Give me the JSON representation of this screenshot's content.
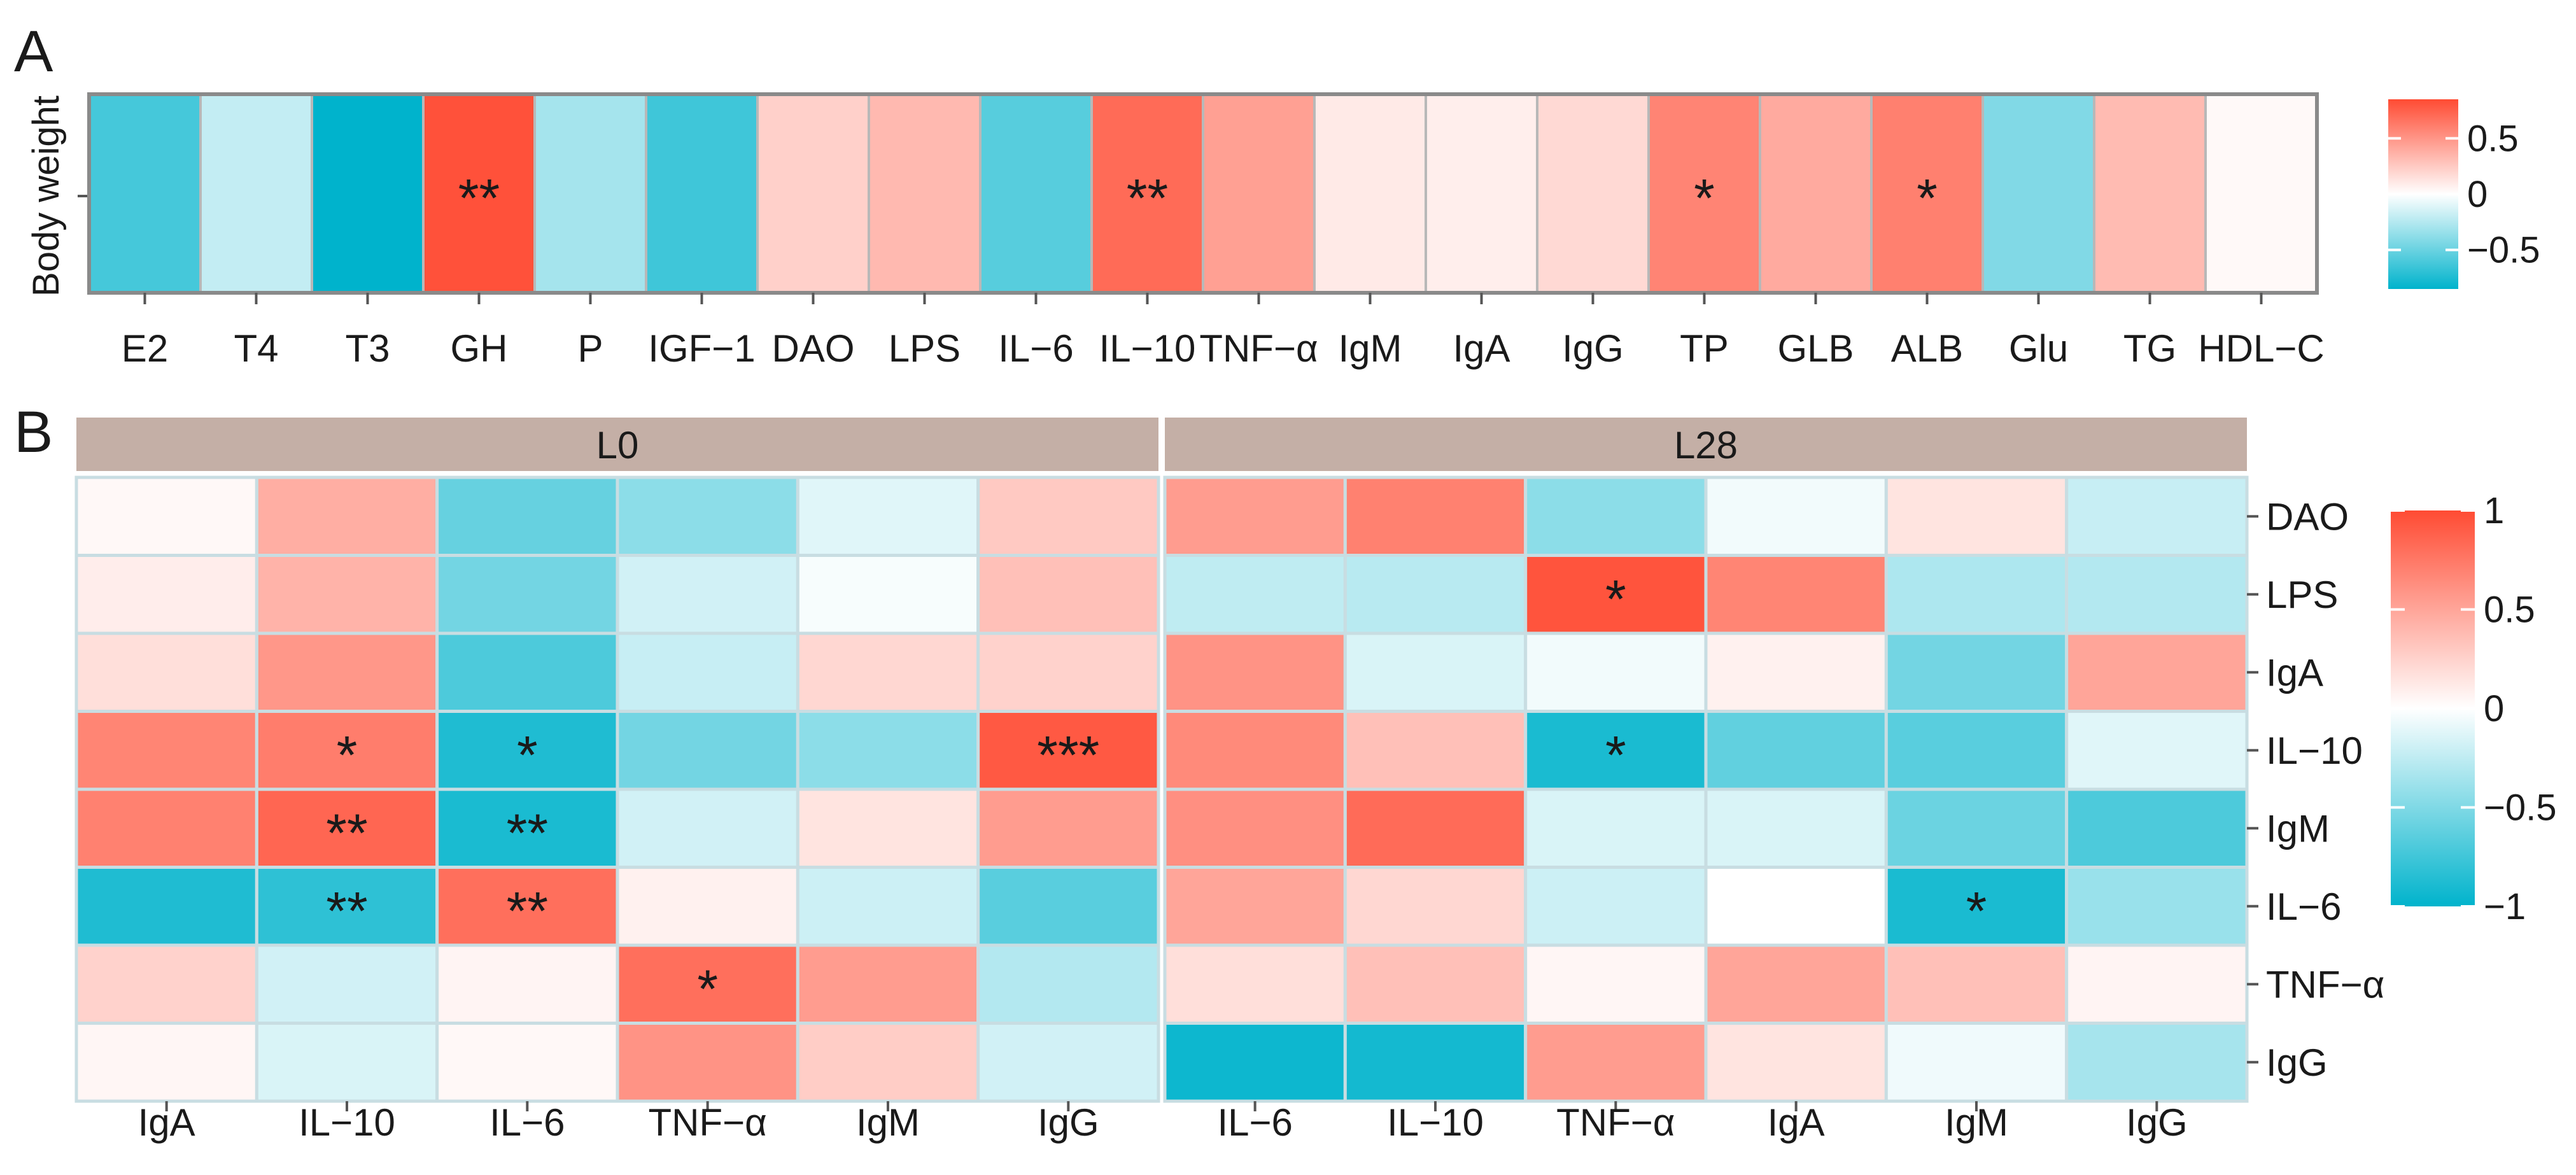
{
  "colors": {
    "high": "#FF4B33",
    "mid": "#FFFFFF",
    "low": "#00B3CC",
    "strip": "#C4AFA6",
    "grid": "#B8B8B8"
  },
  "chart_data": [
    {
      "panel": "A",
      "type": "heatmap",
      "ylabel": "Body weight",
      "rows": [
        "Body weight"
      ],
      "columns": [
        "E2",
        "T4",
        "T3",
        "GH",
        "P",
        "IGF−1",
        "DAO",
        "LPS",
        "IL−6",
        "IL−10",
        "TNF−α",
        "IgM",
        "IgA",
        "IgG",
        "TP",
        "GLB",
        "ALB",
        "Glu",
        "TG",
        "HDL−C"
      ],
      "values": [
        [
          -0.62,
          -0.2,
          -0.88,
          0.82,
          -0.3,
          -0.64,
          0.22,
          0.33,
          -0.56,
          0.7,
          0.45,
          0.1,
          0.08,
          0.18,
          0.58,
          0.4,
          0.6,
          -0.42,
          0.32,
          0.03
        ]
      ],
      "significance": [
        [
          "",
          "",
          "",
          "**",
          "",
          "",
          "",
          "",
          "",
          "**",
          "",
          "",
          "",
          "",
          "*",
          "",
          "*",
          "",
          "",
          ""
        ]
      ],
      "colorbar": {
        "range": [
          -0.85,
          0.85
        ],
        "ticks": [
          0.5,
          0,
          -0.5
        ],
        "tick_labels": [
          "0.5",
          "0",
          "−0.5"
        ]
      }
    },
    {
      "panel": "B",
      "type": "heatmap",
      "row_labels": [
        "DAO",
        "LPS",
        "IgA",
        "IL−10",
        "IgM",
        "IL−6",
        "TNF−α",
        "IgG"
      ],
      "facets": [
        {
          "name": "L0",
          "columns": [
            "IgA",
            "IL−10",
            "IL−6",
            "TNF−α",
            "IgM",
            "IgG"
          ],
          "values": [
            [
              0.04,
              0.45,
              -0.6,
              -0.45,
              -0.12,
              0.3
            ],
            [
              0.1,
              0.42,
              -0.55,
              -0.18,
              -0.03,
              0.35
            ],
            [
              0.18,
              0.58,
              -0.7,
              -0.22,
              0.22,
              0.25
            ],
            [
              0.68,
              0.72,
              -0.88,
              -0.55,
              -0.45,
              0.92
            ],
            [
              0.7,
              0.85,
              -0.9,
              -0.18,
              0.15,
              0.55
            ],
            [
              -0.88,
              -0.82,
              0.8,
              0.08,
              -0.2,
              -0.65
            ],
            [
              0.25,
              -0.18,
              0.06,
              0.8,
              0.55,
              -0.3
            ],
            [
              0.05,
              -0.15,
              0.04,
              0.6,
              0.28,
              -0.18
            ]
          ],
          "significance": [
            [
              "",
              "",
              "",
              "",
              "",
              ""
            ],
            [
              "",
              "",
              "",
              "",
              "",
              ""
            ],
            [
              "",
              "",
              "",
              "",
              "",
              ""
            ],
            [
              "",
              "*",
              "*",
              "",
              "",
              "***"
            ],
            [
              "",
              "**",
              "**",
              "",
              "",
              ""
            ],
            [
              "",
              "**",
              "**",
              "",
              "",
              ""
            ],
            [
              "",
              "",
              "",
              "*",
              "",
              ""
            ],
            [
              "",
              "",
              "",
              "",
              "",
              ""
            ]
          ]
        },
        {
          "name": "L28",
          "columns": [
            "IL−6",
            "IL−10",
            "TNF−α",
            "IgA",
            "IgM",
            "IgG"
          ],
          "values": [
            [
              0.55,
              0.7,
              -0.45,
              -0.05,
              0.15,
              -0.22
            ],
            [
              -0.25,
              -0.28,
              0.95,
              0.68,
              -0.32,
              -0.3
            ],
            [
              0.6,
              -0.15,
              -0.05,
              0.08,
              -0.55,
              0.5
            ],
            [
              0.65,
              0.35,
              -0.9,
              -0.62,
              -0.65,
              -0.12
            ],
            [
              0.62,
              0.82,
              -0.15,
              -0.15,
              -0.58,
              -0.7
            ],
            [
              0.5,
              0.22,
              -0.2,
              0.0,
              -0.9,
              -0.4
            ],
            [
              0.18,
              0.35,
              0.05,
              0.5,
              0.35,
              0.06
            ],
            [
              -0.95,
              -0.92,
              0.55,
              0.15,
              -0.06,
              -0.35
            ]
          ],
          "significance": [
            [
              "",
              "",
              "",
              "",
              "",
              ""
            ],
            [
              "",
              "",
              "*",
              "",
              "",
              ""
            ],
            [
              "",
              "",
              "",
              "",
              "",
              ""
            ],
            [
              "",
              "",
              "*",
              "",
              "",
              ""
            ],
            [
              "",
              "",
              "",
              "",
              "",
              ""
            ],
            [
              "",
              "",
              "",
              "",
              "*",
              ""
            ],
            [
              "",
              "",
              "",
              "",
              "",
              ""
            ],
            [
              "",
              "",
              "",
              "",
              "",
              ""
            ]
          ]
        }
      ],
      "colorbar": {
        "range": [
          -1,
          1
        ],
        "ticks": [
          1,
          0.5,
          0,
          -0.5,
          -1
        ],
        "tick_labels": [
          "1",
          "0.5",
          "0",
          "−0.5",
          "−1"
        ]
      }
    }
  ]
}
